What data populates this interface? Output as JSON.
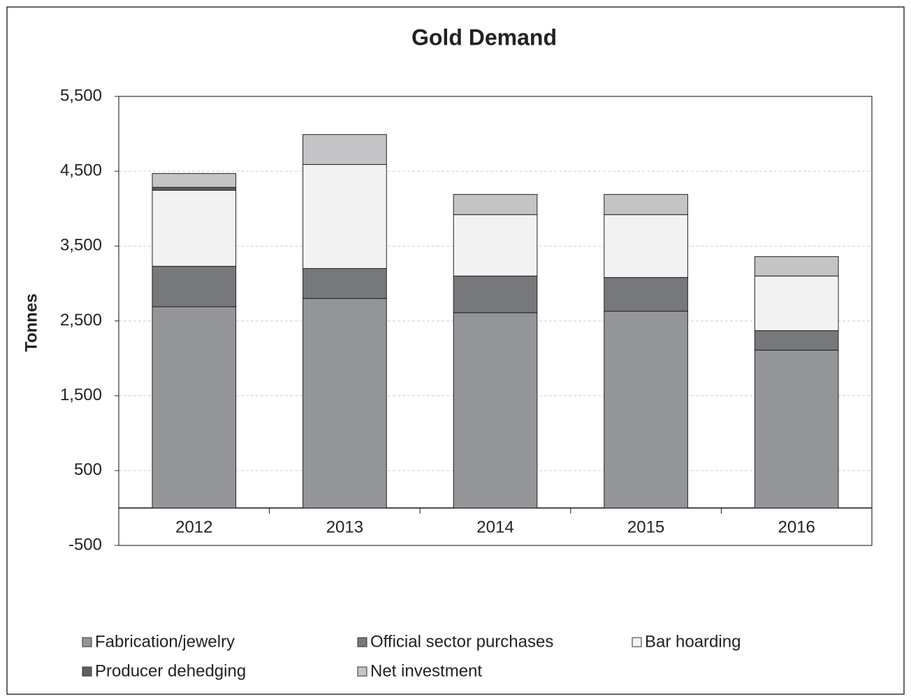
{
  "chart_data": {
    "type": "stacked_bar",
    "title": "Gold Demand",
    "y_label": "Tonnes",
    "categories": [
      "2012",
      "2013",
      "2014",
      "2015",
      "2016"
    ],
    "series": [
      {
        "name": "Fabrication/jewelry",
        "color": "#939598",
        "values": [
          2690,
          2800,
          2610,
          2630,
          2110
        ]
      },
      {
        "name": "Official sector purchases",
        "color": "#77787b",
        "values": [
          540,
          400,
          490,
          450,
          260
        ]
      },
      {
        "name": "Bar hoarding",
        "color": "#f2f2f2",
        "values": [
          1015,
          1390,
          820,
          840,
          730
        ]
      },
      {
        "name": "Producer dehedging",
        "color": "#5e5f61",
        "values": [
          40,
          0,
          0,
          0,
          0
        ]
      },
      {
        "name": "Net investment",
        "color": "#c4c4c6",
        "values": [
          185,
          400,
          270,
          270,
          260
        ]
      }
    ],
    "ylim": [
      -500,
      5500
    ],
    "yticks": [
      -500,
      500,
      {
        "value": 1500,
        "label": "1,500"
      },
      {
        "value": 2500,
        "label": "2,500"
      },
      {
        "value": 3500,
        "label": "3,500"
      },
      {
        "value": 4500,
        "label": "4,500"
      },
      {
        "value": 5500,
        "label": "5,500"
      }
    ],
    "grid": true
  }
}
